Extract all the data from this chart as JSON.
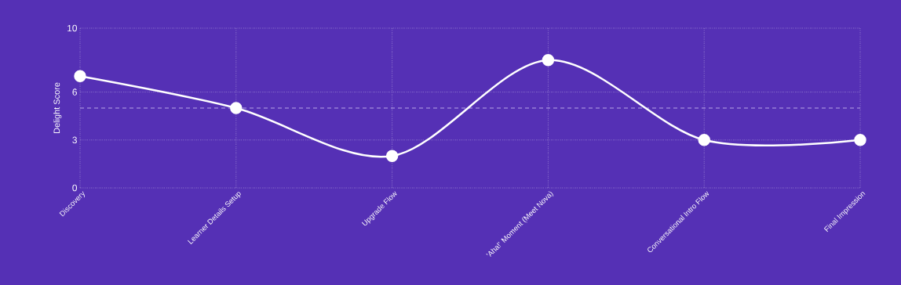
{
  "chart_data": {
    "type": "line",
    "ylabel": "Delight Score",
    "categories": [
      "Discovery",
      "Learner Details Setup",
      "Upgrade Flow",
      "'Aha!' Moment (Meet Nova)",
      "Conversational Intro Flow",
      "Final Impression"
    ],
    "series": [
      {
        "color": "#ffffff",
        "values": [
          7,
          5,
          2,
          8,
          3,
          3
        ]
      }
    ],
    "ylim": [
      0,
      10
    ],
    "yticks": [
      0,
      3,
      6,
      10
    ],
    "grid": true,
    "marker": "circle",
    "line_style": "solid",
    "ref_lines": [
      {
        "axis": "y",
        "value": 5,
        "color": "#b9a6e6",
        "line_style": "dashed"
      }
    ]
  }
}
